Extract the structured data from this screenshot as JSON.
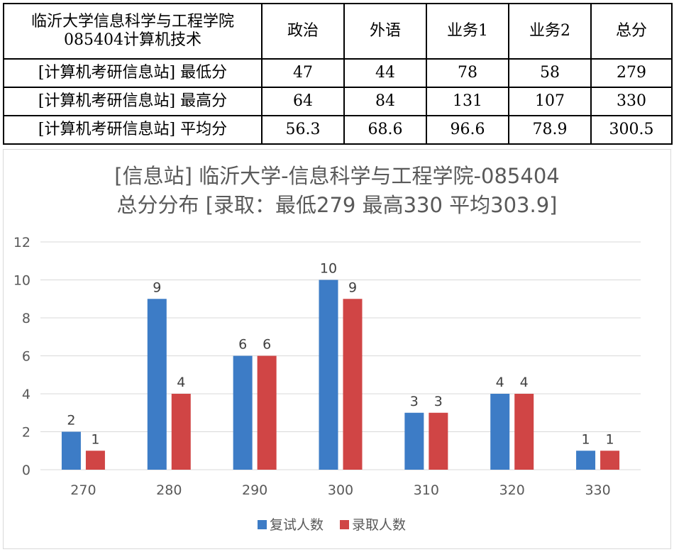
{
  "table": {
    "header": {
      "title_line1": "临沂大学信息科学与工程学院",
      "title_line2": "085404计算机技术",
      "columns": [
        "政治",
        "外语",
        "业务1",
        "业务2",
        "总分"
      ]
    },
    "rows": [
      {
        "label": "[计算机考研信息站] 最低分",
        "values": [
          "47",
          "44",
          "78",
          "58",
          "279"
        ]
      },
      {
        "label": "[计算机考研信息站] 最高分",
        "values": [
          "64",
          "84",
          "131",
          "107",
          "330"
        ]
      },
      {
        "label": "[计算机考研信息站] 平均分",
        "values": [
          "56.3",
          "68.6",
          "96.6",
          "78.9",
          "300.5"
        ]
      }
    ]
  },
  "chart_data": {
    "type": "bar",
    "title_line1": "[信息站] 临沂大学-信息科学与工程学院-085404",
    "title_line2": "总分分布 [录取：最低279 最高330 平均303.9]",
    "categories": [
      "270",
      "280",
      "290",
      "300",
      "310",
      "320",
      "330"
    ],
    "series": [
      {
        "name": "复试人数",
        "values": [
          2,
          9,
          6,
          10,
          3,
          4,
          1
        ],
        "color": "#3d7cc6"
      },
      {
        "name": "录取人数",
        "values": [
          1,
          4,
          6,
          9,
          3,
          4,
          1
        ],
        "color": "#d04545"
      }
    ],
    "ylim": [
      0,
      12
    ],
    "yticks": [
      0,
      2,
      4,
      6,
      8,
      10,
      12
    ],
    "grid": true,
    "legend_position": "bottom",
    "colors": {
      "gridline": "#d9d9d9",
      "axis_text": "#595959",
      "title_text": "#595959"
    }
  }
}
